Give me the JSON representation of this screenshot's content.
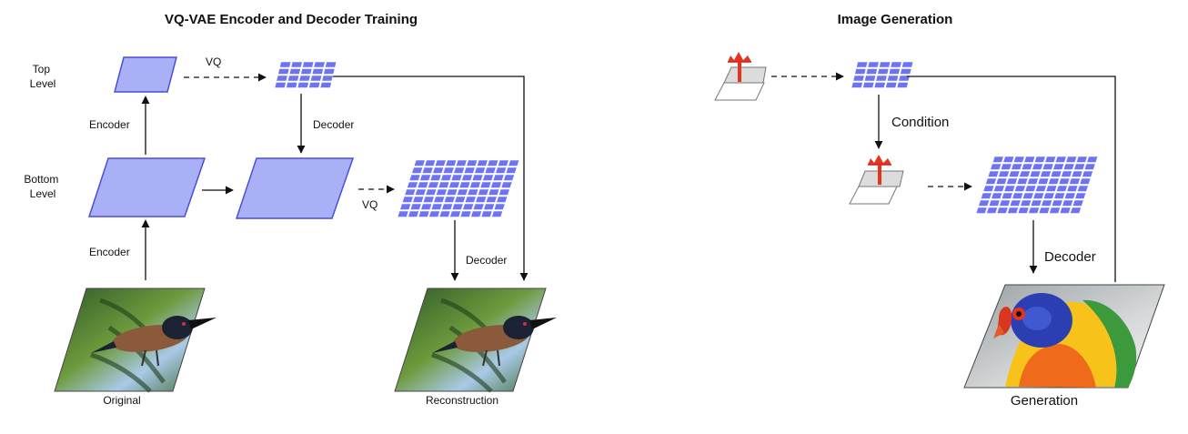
{
  "colors": {
    "latent_fill": "#aab0f5",
    "latent_stroke": "#4a4fd8",
    "grid_cell": "#6e73f0",
    "prior_bar": "#e8331c",
    "line": "#111111"
  },
  "left_panel": {
    "title": "VQ-VAE Encoder and Decoder Training",
    "top_level_label": "Top\nLevel",
    "bottom_level_label": "Bottom\nLevel",
    "encoder_top_label": "Encoder",
    "encoder_bottom_label": "Encoder",
    "vq_top_label": "VQ",
    "vq_bottom_label": "VQ",
    "decoder_top_label": "Decoder",
    "decoder_bottom_label": "Decoder",
    "original_caption": "Original",
    "reconstruction_caption": "Reconstruction"
  },
  "right_panel": {
    "title": "Image Generation",
    "condition_label": "Condition",
    "decoder_label": "Decoder",
    "generation_caption": "Generation"
  },
  "icons": {
    "original_image": "bird-photo-icon",
    "reconstruction_image": "bird-photo-icon",
    "generation_image": "parrot-photo-icon",
    "top_prior": "prior-distribution-icon",
    "bottom_prior": "prior-distribution-icon"
  }
}
